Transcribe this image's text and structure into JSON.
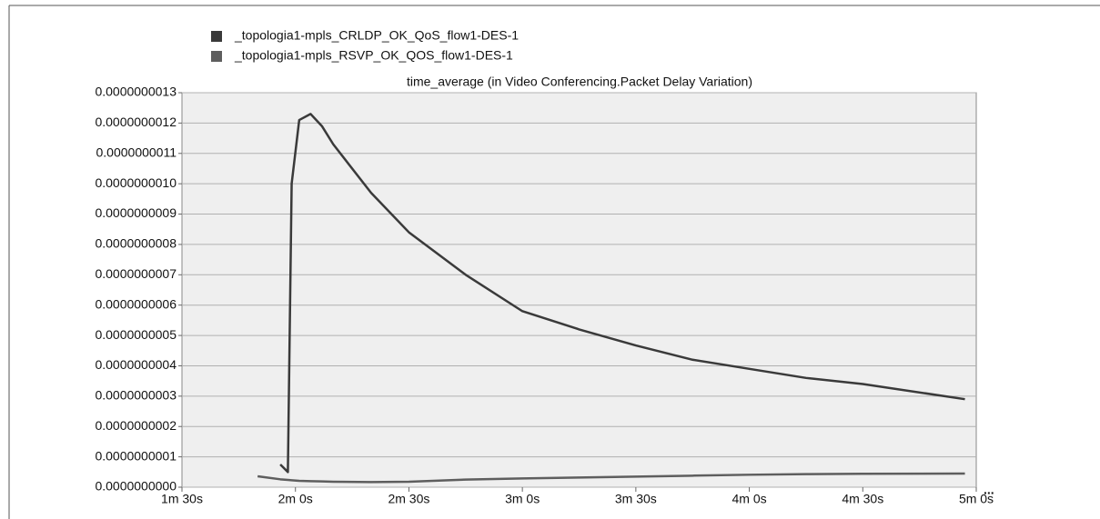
{
  "chart_data": {
    "type": "line",
    "title": "time_average (in Video Conferencing.Packet Delay Variation)",
    "x": [
      110,
      116,
      118,
      119,
      121,
      124,
      127,
      130,
      140,
      150,
      165,
      180,
      195,
      210,
      225,
      240,
      255,
      270,
      297
    ],
    "series": [
      {
        "name": "_topologia1-mpls_CRLDP_OK_QoS_flow1-DES-1",
        "color": "#3a3a3a",
        "values": [
          null,
          7.5e-11,
          5e-11,
          1e-09,
          1.21e-09,
          1.23e-09,
          1.19e-09,
          1.13e-09,
          9.7e-10,
          8.4e-10,
          7e-10,
          5.8e-10,
          5.2e-10,
          4.67e-10,
          4.2e-10,
          3.9e-10,
          3.6e-10,
          3.4e-10,
          2.9e-10
        ]
      },
      {
        "name": "_topologia1-mpls_RSVP_OK_QOS_flow1-DES-1",
        "color": "#5e5e5e",
        "values": [
          3.6e-11,
          2.6e-11,
          2.4e-11,
          2.3e-11,
          2.1e-11,
          2e-11,
          1.9e-11,
          1.8e-11,
          1.7e-11,
          1.8e-11,
          2.5e-11,
          2.9e-11,
          3.2e-11,
          3.5e-11,
          3.8e-11,
          4.1e-11,
          4.3e-11,
          4.4e-11,
          4.5e-11
        ]
      }
    ],
    "xlim": [
      90,
      300
    ],
    "xticks": [
      {
        "value": 90,
        "label": "1m 30s"
      },
      {
        "value": 120,
        "label": "2m 0s"
      },
      {
        "value": 150,
        "label": "2m 30s"
      },
      {
        "value": 180,
        "label": "3m 0s"
      },
      {
        "value": 210,
        "label": "3m 30s"
      },
      {
        "value": 240,
        "label": "4m 0s"
      },
      {
        "value": 270,
        "label": "4m 30s"
      },
      {
        "value": 300,
        "label": "5m 0s"
      }
    ],
    "ylim": [
      0,
      1.3e-09
    ],
    "yticks": [
      {
        "value": 0,
        "label": "0.0000000000"
      },
      {
        "value": 1e-10,
        "label": "0.0000000001"
      },
      {
        "value": 2e-10,
        "label": "0.0000000002"
      },
      {
        "value": 3e-10,
        "label": "0.0000000003"
      },
      {
        "value": 4e-10,
        "label": "0.0000000004"
      },
      {
        "value": 5e-10,
        "label": "0.0000000005"
      },
      {
        "value": 6e-10,
        "label": "0.0000000006"
      },
      {
        "value": 7e-10,
        "label": "0.0000000007"
      },
      {
        "value": 8e-10,
        "label": "0.0000000008"
      },
      {
        "value": 9e-10,
        "label": "0.0000000009"
      },
      {
        "value": 1e-09,
        "label": "0.0000000010"
      },
      {
        "value": 1.1e-09,
        "label": "0.0000000011"
      },
      {
        "value": 1.2e-09,
        "label": "0.0000000012"
      },
      {
        "value": 1.3e-09,
        "label": "0.0000000013"
      }
    ],
    "x_more": "...",
    "grid": true,
    "plot_background": "#efefef"
  }
}
